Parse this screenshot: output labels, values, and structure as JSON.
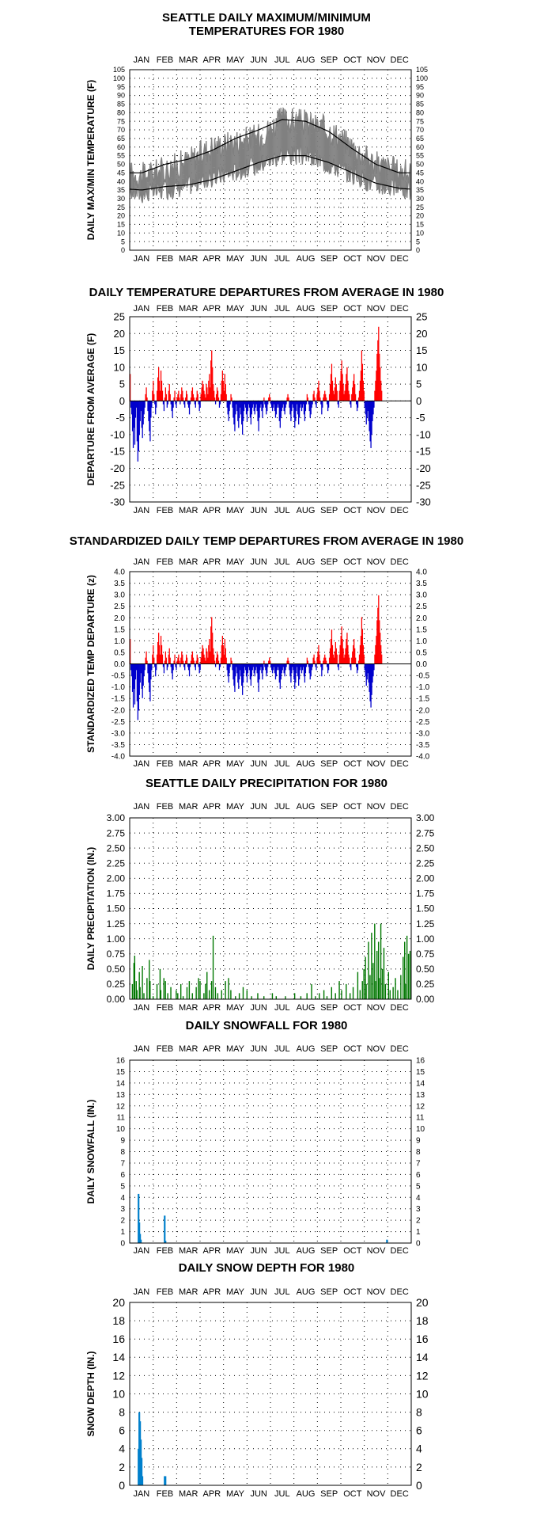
{
  "months": [
    "JAN",
    "FEB",
    "MAR",
    "APR",
    "MAY",
    "JUN",
    "JUL",
    "AUG",
    "SEP",
    "OCT",
    "NOV",
    "DEC"
  ],
  "colors": {
    "max_min": "#808080",
    "normal": "#000000",
    "above": "#ff0000",
    "below": "#0000cc",
    "precip": "#007700",
    "snow": "#0080cc"
  },
  "titles": {
    "temp_line1": "SEATTLE DAILY MAXIMUM/MINIMUM",
    "temp_line2": "TEMPERATURES FOR 1980",
    "dep": "DAILY TEMPERATURE DEPARTURES FROM AVERAGE IN 1980",
    "std": "STANDARDIZED DAILY TEMP DEPARTURES FROM AVERAGE IN 1980",
    "precip": "SEATTLE DAILY PRECIPITATION FOR 1980",
    "snowfall": "DAILY SNOWFALL FOR 1980",
    "depth": "DAILY SNOW DEPTH FOR 1980"
  },
  "chart_data": [
    {
      "id": "temp",
      "type": "line",
      "title": "SEATTLE DAILY MAXIMUM/MINIMUM TEMPERATURES FOR 1980",
      "ylabel": "DAILY MAX/MIN TEMPERATURE (F)",
      "ylim": [
        0,
        105
      ],
      "yticks": [
        0,
        5,
        10,
        15,
        20,
        25,
        30,
        35,
        40,
        45,
        50,
        55,
        60,
        65,
        70,
        75,
        80,
        85,
        90,
        95,
        100,
        105
      ],
      "grid": true,
      "series": [],
      "max_by_month": [
        43,
        47,
        52,
        60,
        63,
        66,
        76,
        74,
        70,
        60,
        50,
        46
      ],
      "min_by_month": [
        33,
        35,
        38,
        42,
        46,
        50,
        56,
        55,
        50,
        44,
        38,
        36
      ],
      "normal_max_by_month": [
        45,
        50,
        53,
        58,
        65,
        70,
        76,
        75,
        69,
        59,
        50,
        45
      ],
      "normal_min_by_month": [
        35,
        37,
        38,
        41,
        46,
        51,
        55,
        55,
        51,
        45,
        39,
        36
      ]
    },
    {
      "id": "dep",
      "type": "bar",
      "title": "DAILY TEMPERATURE DEPARTURES FROM AVERAGE IN 1980",
      "ylabel": "DEPARTURE FROM AVERAGE (F)",
      "ylim": [
        -30,
        25
      ],
      "yticks": [
        -30,
        -25,
        -20,
        -15,
        -10,
        -5,
        0,
        5,
        10,
        15,
        20,
        25
      ],
      "grid": true,
      "values": [
        8,
        -2,
        -4,
        -9,
        -14,
        -8,
        -13,
        -5,
        -2,
        -12,
        -18,
        -15,
        -10,
        -6,
        -3,
        -8,
        -11,
        -7,
        -4,
        -2,
        2,
        4,
        1,
        -3,
        -6,
        -9,
        -12,
        -5,
        -2,
        3,
        6,
        2,
        -1,
        -4,
        -2,
        3,
        7,
        10,
        6,
        3,
        9,
        6,
        3,
        -1,
        -3,
        1,
        4,
        2,
        -2,
        -1,
        3,
        5,
        2,
        -1,
        -3,
        -5,
        -2,
        1,
        3,
        -1,
        -2,
        1,
        2,
        3,
        1,
        -1,
        2,
        4,
        3,
        1,
        -1,
        -2,
        1,
        3,
        2,
        -1,
        -2,
        -4,
        -1,
        1,
        3,
        4,
        2,
        1,
        -1,
        -2,
        1,
        3,
        2,
        -1,
        -3,
        -2,
        2,
        4,
        6,
        5,
        3,
        2,
        1,
        5,
        4,
        2,
        6,
        8,
        4,
        12,
        15,
        10,
        5,
        3,
        1,
        -1,
        2,
        4,
        3,
        1,
        -2,
        -1,
        2,
        6,
        9,
        6,
        3,
        8,
        5,
        2,
        -2,
        -4,
        -6,
        -3,
        -1,
        2,
        1,
        -2,
        -5,
        -7,
        -9,
        -4,
        -1,
        -3,
        -6,
        -8,
        -5,
        -2,
        -4,
        -7,
        -10,
        -6,
        -3,
        -1,
        -2,
        -4,
        -6,
        -3,
        -1,
        -2,
        -5,
        -7,
        -4,
        -2,
        -1,
        -3,
        -4,
        -2,
        -1,
        -3,
        -6,
        -9,
        -5,
        -2,
        -1,
        -3,
        -5,
        -2,
        1,
        -1,
        -2,
        -4,
        -3,
        -1,
        1,
        2,
        1,
        -1,
        -2,
        -3,
        -2,
        -1,
        -3,
        -5,
        -4,
        -2,
        -1,
        -2,
        -6,
        -8,
        -5,
        -3,
        -2,
        -1,
        -3,
        -4,
        -2,
        -1,
        1,
        2,
        1,
        -2,
        -4,
        -6,
        -3,
        -1,
        -2,
        -5,
        -8,
        -6,
        -3,
        -1,
        -4,
        -7,
        -5,
        -2,
        -1,
        -3,
        -2,
        -1,
        -4,
        -6,
        -3,
        -1,
        2,
        1,
        -1,
        -3,
        -5,
        -4,
        -2,
        -1,
        2,
        3,
        1,
        -1,
        -2,
        2,
        4,
        6,
        3,
        1,
        -1,
        -4,
        -2,
        1,
        2,
        3,
        2,
        1,
        -1,
        -3,
        -2,
        2,
        5,
        8,
        11,
        6,
        3,
        2,
        4,
        7,
        5,
        3,
        -1,
        -2,
        3,
        6,
        9,
        12,
        8,
        5,
        2,
        3,
        5,
        8,
        10,
        6,
        3,
        2,
        -1,
        -2,
        2,
        4,
        6,
        8,
        5,
        2,
        -1,
        -3,
        -2,
        1,
        3,
        6,
        9,
        15,
        11,
        6,
        3,
        -2,
        -4,
        -7,
        -5,
        -3,
        -6,
        -9,
        -12,
        -14,
        -10,
        -6,
        -4,
        -2,
        3,
        6,
        9,
        14,
        18,
        22,
        14,
        10,
        6,
        3
      ],
      "values_estimated": true
    },
    {
      "id": "std",
      "type": "bar",
      "title": "STANDARDIZED DAILY TEMP DEPARTURES FROM AVERAGE IN 1980",
      "ylabel": "STANDARDIZED TEMP DEPARTURE (z)",
      "ylim": [
        -4.0,
        4.0
      ],
      "yticks": [
        -4.0,
        -3.5,
        -3.0,
        -2.5,
        -2.0,
        -1.5,
        -1.0,
        -0.5,
        0.0,
        0.5,
        1.0,
        1.5,
        2.0,
        2.5,
        3.0,
        3.5,
        4.0
      ],
      "grid": true,
      "scale_from_dep": 7.4,
      "values_estimated": true
    },
    {
      "id": "precip",
      "type": "bar",
      "title": "SEATTLE DAILY PRECIPITATION FOR 1980",
      "ylabel": "DAILY PRECIPITATION (IN.)",
      "ylim": [
        0,
        3.0
      ],
      "yticks": [
        0.0,
        0.25,
        0.5,
        0.75,
        1.0,
        1.25,
        1.5,
        1.75,
        2.0,
        2.25,
        2.5,
        2.75,
        3.0
      ],
      "grid": true,
      "wet_days": [
        [
          3,
          0.25
        ],
        [
          5,
          0.6
        ],
        [
          6,
          0.72
        ],
        [
          8,
          0.3
        ],
        [
          9,
          0.15
        ],
        [
          12,
          0.45
        ],
        [
          13,
          0.2
        ],
        [
          16,
          0.55
        ],
        [
          18,
          0.1
        ],
        [
          22,
          0.35
        ],
        [
          25,
          0.65
        ],
        [
          26,
          0.3
        ],
        [
          30,
          0.05
        ],
        [
          35,
          0.25
        ],
        [
          39,
          0.5
        ],
        [
          40,
          0.15
        ],
        [
          44,
          0.35
        ],
        [
          46,
          0.3
        ],
        [
          49,
          0.1
        ],
        [
          53,
          0.2
        ],
        [
          60,
          0.15
        ],
        [
          62,
          0.1
        ],
        [
          66,
          0.25
        ],
        [
          69,
          0.05
        ],
        [
          74,
          0.2
        ],
        [
          77,
          0.3
        ],
        [
          81,
          0.1
        ],
        [
          86,
          0.2
        ],
        [
          89,
          0.35
        ],
        [
          91,
          0.3
        ],
        [
          96,
          0.1
        ],
        [
          98,
          0.25
        ],
        [
          100,
          0.45
        ],
        [
          103,
          0.15
        ],
        [
          106,
          0.3
        ],
        [
          108,
          1.05
        ],
        [
          111,
          0.2
        ],
        [
          114,
          0.1
        ],
        [
          119,
          0.15
        ],
        [
          124,
          0.3
        ],
        [
          128,
          0.35
        ],
        [
          131,
          0.15
        ],
        [
          137,
          0.05
        ],
        [
          142,
          0.1
        ],
        [
          147,
          0.2
        ],
        [
          152,
          0.15
        ],
        [
          158,
          0.05
        ],
        [
          166,
          0.1
        ],
        [
          174,
          0.05
        ],
        [
          185,
          0.1
        ],
        [
          190,
          0.05
        ],
        [
          202,
          0.05
        ],
        [
          214,
          0.1
        ],
        [
          222,
          0.05
        ],
        [
          230,
          0.1
        ],
        [
          236,
          0.25
        ],
        [
          241,
          0.05
        ],
        [
          246,
          0.1
        ],
        [
          252,
          0.15
        ],
        [
          256,
          0.05
        ],
        [
          262,
          0.2
        ],
        [
          267,
          0.1
        ],
        [
          272,
          0.3
        ],
        [
          275,
          0.15
        ],
        [
          281,
          0.25
        ],
        [
          286,
          0.1
        ],
        [
          290,
          0.2
        ],
        [
          296,
          0.45
        ],
        [
          299,
          0.15
        ],
        [
          302,
          0.3
        ],
        [
          304,
          0.5
        ],
        [
          306,
          0.7
        ],
        [
          307,
          0.25
        ],
        [
          310,
          0.95
        ],
        [
          312,
          0.4
        ],
        [
          314,
          1.1
        ],
        [
          316,
          0.6
        ],
        [
          318,
          1.25
        ],
        [
          319,
          0.3
        ],
        [
          321,
          0.8
        ],
        [
          323,
          0.95
        ],
        [
          324,
          0.35
        ],
        [
          326,
          1.25
        ],
        [
          328,
          0.5
        ],
        [
          330,
          0.85
        ],
        [
          332,
          0.25
        ],
        [
          336,
          0.45
        ],
        [
          338,
          0.15
        ],
        [
          342,
          0.2
        ],
        [
          345,
          0.35
        ],
        [
          348,
          0.15
        ],
        [
          352,
          0.4
        ],
        [
          355,
          0.7
        ],
        [
          357,
          0.95
        ],
        [
          358,
          0.25
        ],
        [
          360,
          1.05
        ],
        [
          362,
          0.75
        ],
        [
          364,
          0.8
        ]
      ],
      "values_estimated": true
    },
    {
      "id": "snowfall",
      "type": "bar",
      "title": "DAILY SNOWFALL FOR 1980",
      "ylabel": "DAILY SNOWFALL (IN.)",
      "ylim": [
        0,
        16
      ],
      "yticks": [
        0,
        1,
        2,
        3,
        4,
        5,
        6,
        7,
        8,
        9,
        10,
        11,
        12,
        13,
        14,
        15,
        16
      ],
      "grid": true,
      "events": [
        [
          11,
          4.3
        ],
        [
          12,
          1.8
        ],
        [
          13,
          0.8
        ],
        [
          14,
          0.3
        ],
        [
          45,
          2.4
        ],
        [
          46,
          0.2
        ],
        [
          334,
          0.3
        ]
      ],
      "values_estimated": true
    },
    {
      "id": "depth",
      "type": "bar",
      "title": "DAILY SNOW DEPTH FOR 1980",
      "ylabel": "SNOW DEPTH (IN.)",
      "ylim": [
        0,
        20
      ],
      "yticks": [
        0,
        2,
        4,
        6,
        8,
        10,
        12,
        14,
        16,
        18,
        20
      ],
      "grid": true,
      "events": [
        [
          11,
          4
        ],
        [
          12,
          8
        ],
        [
          13,
          7
        ],
        [
          14,
          5
        ],
        [
          15,
          3
        ],
        [
          16,
          1
        ],
        [
          45,
          1
        ],
        [
          46,
          1
        ]
      ],
      "values_estimated": true
    }
  ]
}
